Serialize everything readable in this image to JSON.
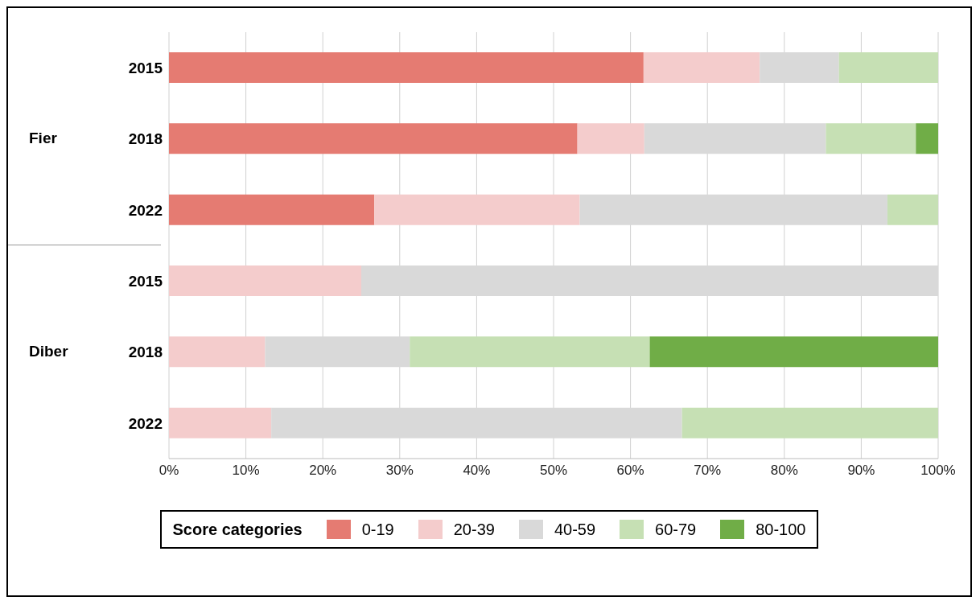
{
  "chart_data": {
    "type": "bar",
    "orientation": "horizontal",
    "stacked": true,
    "categories": [
      "2015",
      "2018",
      "2022",
      "2015",
      "2018",
      "2022"
    ],
    "annotations": [
      "Fier",
      "Diber"
    ],
    "legend_title": "Score categories",
    "legend": "bottom",
    "grid": "x",
    "xlim": [
      0,
      100
    ],
    "xticks": [
      {
        "value": 0,
        "label": "0%"
      },
      {
        "value": 10,
        "label": "10%"
      },
      {
        "value": 20,
        "label": "20%"
      },
      {
        "value": 30,
        "label": "30%"
      },
      {
        "value": 40,
        "label": "40%"
      },
      {
        "value": 50,
        "label": "50%"
      },
      {
        "value": 60,
        "label": "60%"
      },
      {
        "value": 70,
        "label": "70%"
      },
      {
        "value": 80,
        "label": "80%"
      },
      {
        "value": 90,
        "label": "90%"
      },
      {
        "value": 100,
        "label": "100%"
      }
    ],
    "series": [
      {
        "name": "0-19",
        "color": "#e57b72",
        "values": [
          61.7,
          53.1,
          26.7,
          0,
          0,
          0
        ]
      },
      {
        "name": "20-39",
        "color": "#f4cccc",
        "values": [
          15.1,
          8.7,
          26.7,
          25,
          12.5,
          13.3
        ]
      },
      {
        "name": "40-59",
        "color": "#d9d9d9",
        "values": [
          10.3,
          23.6,
          40,
          75,
          18.8,
          53.4
        ]
      },
      {
        "name": "60-79",
        "color": "#c6e0b4",
        "values": [
          12.9,
          11.7,
          6.6,
          0,
          31.2,
          33.3
        ]
      },
      {
        "name": "80-100",
        "color": "#70ad47",
        "values": [
          0,
          2.9,
          0,
          0,
          37.5,
          0
        ]
      }
    ]
  }
}
